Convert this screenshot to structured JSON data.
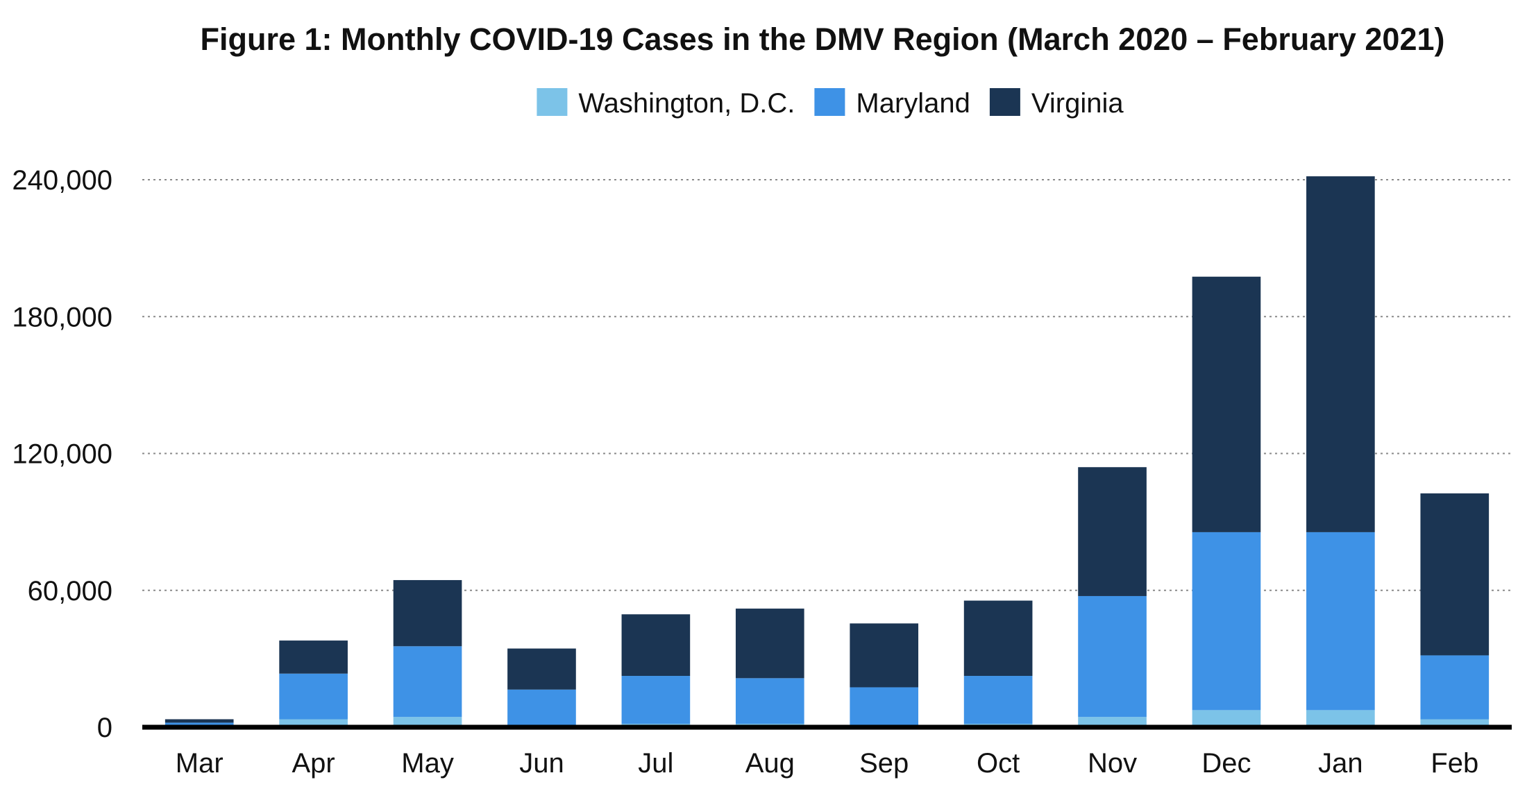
{
  "chart_data": {
    "type": "bar",
    "stacked": true,
    "title": "Figure 1: Monthly COVID-19 Cases in the DMV Region (March 2020 – February 2021)",
    "categories": [
      "Mar",
      "Apr",
      "May",
      "Jun",
      "Jul",
      "Aug",
      "Sep",
      "Oct",
      "Nov",
      "Dec",
      "Jan",
      "Feb"
    ],
    "series": [
      {
        "name": "Washington, D.C.",
        "color": "#7cc3e8",
        "values": [
          500,
          3500,
          4500,
          1000,
          1500,
          1500,
          1000,
          1500,
          4500,
          7500,
          7500,
          3500
        ]
      },
      {
        "name": "Maryland",
        "color": "#3e92e6",
        "values": [
          1500,
          20000,
          31000,
          15500,
          21000,
          20000,
          16500,
          21000,
          53000,
          78000,
          78000,
          28000
        ]
      },
      {
        "name": "Virginia",
        "color": "#1b3553",
        "values": [
          1500,
          14500,
          29000,
          18000,
          27000,
          30500,
          28000,
          33000,
          56500,
          112000,
          156000,
          71000
        ]
      }
    ],
    "yticks": [
      0,
      60000,
      120000,
      180000,
      240000
    ],
    "ytick_labels": [
      "0",
      "60,000",
      "120,000",
      "180,000",
      "240,000"
    ],
    "ylim": [
      0,
      250000
    ],
    "grid": true,
    "legend": "top-center"
  }
}
